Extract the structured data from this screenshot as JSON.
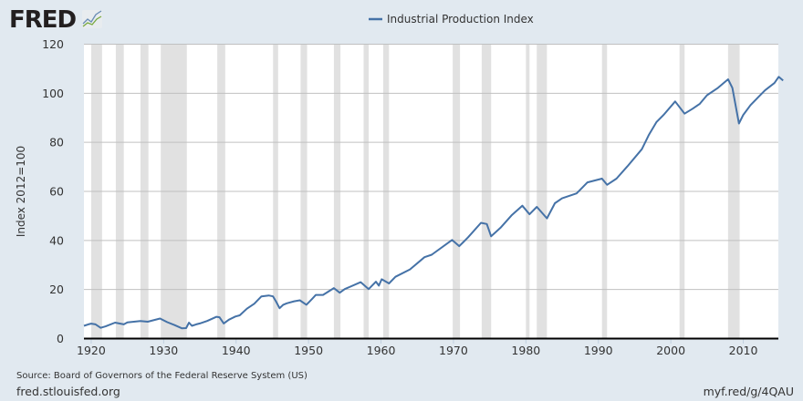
{
  "logo": {
    "text": "FRED"
  },
  "footer": {
    "source": "Source: Board of Governors of the Federal Reserve System (US)",
    "site": "fred.stlouisfed.org",
    "short_url": "myf.red/g/4QAU"
  },
  "colors": {
    "background": "#e1e9f0",
    "series": "#4572a7",
    "recession": "#e1e1e1",
    "grid": "#c0c0c0"
  },
  "chart_data": {
    "type": "line",
    "title": "",
    "xlabel": "",
    "ylabel": "Index 2012=100",
    "xlim": [
      1919.0,
      2015.6
    ],
    "ylim": [
      0,
      120
    ],
    "grid": true,
    "legend_placement": "top-center",
    "x_ticks": [
      "1920",
      "1930",
      "1940",
      "1950",
      "1960",
      "1970",
      "1980",
      "1990",
      "2000",
      "2010"
    ],
    "y_ticks": [
      "0",
      "20",
      "40",
      "60",
      "80",
      "100",
      "120"
    ],
    "recessions": [
      [
        1920.0,
        1921.5
      ],
      [
        1923.4,
        1924.5
      ],
      [
        1926.8,
        1927.9
      ],
      [
        1929.6,
        1933.2
      ],
      [
        1937.4,
        1938.5
      ],
      [
        1945.1,
        1945.8
      ],
      [
        1948.9,
        1949.8
      ],
      [
        1953.5,
        1954.4
      ],
      [
        1957.6,
        1958.3
      ],
      [
        1960.3,
        1961.1
      ],
      [
        1969.9,
        1970.9
      ],
      [
        1973.9,
        1975.2
      ],
      [
        1980.0,
        1980.5
      ],
      [
        1981.5,
        1982.9
      ],
      [
        1990.5,
        1991.2
      ],
      [
        2001.2,
        2001.9
      ],
      [
        2007.9,
        2009.5
      ]
    ],
    "series": [
      {
        "name": "Industrial Production Index",
        "points": [
          [
            1919.0,
            5.0
          ],
          [
            1919.6,
            5.6
          ],
          [
            1920.0,
            5.9
          ],
          [
            1920.6,
            5.6
          ],
          [
            1921.3,
            4.2
          ],
          [
            1922.0,
            4.8
          ],
          [
            1923.3,
            6.3
          ],
          [
            1924.5,
            5.6
          ],
          [
            1925.0,
            6.4
          ],
          [
            1926.8,
            7.0
          ],
          [
            1927.8,
            6.7
          ],
          [
            1929.5,
            8.0
          ],
          [
            1930.5,
            6.5
          ],
          [
            1931.5,
            5.3
          ],
          [
            1932.5,
            4.0
          ],
          [
            1933.1,
            4.1
          ],
          [
            1933.5,
            6.3
          ],
          [
            1933.9,
            5.0
          ],
          [
            1934.5,
            5.6
          ],
          [
            1935.0,
            6.0
          ],
          [
            1936.0,
            7.0
          ],
          [
            1937.3,
            8.7
          ],
          [
            1937.7,
            8.5
          ],
          [
            1938.3,
            6.0
          ],
          [
            1939.0,
            7.5
          ],
          [
            1939.9,
            8.8
          ],
          [
            1940.5,
            9.3
          ],
          [
            1941.5,
            12.0
          ],
          [
            1942.5,
            14.0
          ],
          [
            1943.5,
            17.0
          ],
          [
            1944.5,
            17.4
          ],
          [
            1945.1,
            17.0
          ],
          [
            1945.5,
            15.0
          ],
          [
            1946.0,
            12.2
          ],
          [
            1946.5,
            13.6
          ],
          [
            1947.0,
            14.2
          ],
          [
            1948.0,
            15.0
          ],
          [
            1948.8,
            15.4
          ],
          [
            1949.7,
            13.6
          ],
          [
            1950.5,
            16.0
          ],
          [
            1951.0,
            17.6
          ],
          [
            1952.0,
            17.6
          ],
          [
            1953.5,
            20.4
          ],
          [
            1954.3,
            18.5
          ],
          [
            1955.0,
            20.0
          ],
          [
            1957.2,
            22.8
          ],
          [
            1958.3,
            20.0
          ],
          [
            1959.3,
            23.0
          ],
          [
            1959.7,
            21.4
          ],
          [
            1960.1,
            24.0
          ],
          [
            1961.1,
            22.3
          ],
          [
            1962.0,
            25.0
          ],
          [
            1964.0,
            28.0
          ],
          [
            1966.0,
            33.0
          ],
          [
            1967.0,
            34.0
          ],
          [
            1969.8,
            40.0
          ],
          [
            1970.8,
            37.5
          ],
          [
            1972.0,
            41.0
          ],
          [
            1973.8,
            47.0
          ],
          [
            1974.6,
            46.5
          ],
          [
            1975.2,
            41.5
          ],
          [
            1976.5,
            45.0
          ],
          [
            1978.0,
            50.0
          ],
          [
            1979.5,
            54.0
          ],
          [
            1980.5,
            50.5
          ],
          [
            1981.5,
            53.5
          ],
          [
            1982.9,
            48.8
          ],
          [
            1984.0,
            55.0
          ],
          [
            1985.0,
            57.0
          ],
          [
            1987.0,
            59.0
          ],
          [
            1988.5,
            63.5
          ],
          [
            1990.5,
            65.0
          ],
          [
            1991.2,
            62.5
          ],
          [
            1992.5,
            65.0
          ],
          [
            1994.0,
            70.0
          ],
          [
            1996.0,
            77.0
          ],
          [
            1997.0,
            83.0
          ],
          [
            1998.0,
            88.0
          ],
          [
            1999.0,
            91.0
          ],
          [
            2000.6,
            96.5
          ],
          [
            2001.9,
            91.5
          ],
          [
            2003.0,
            93.5
          ],
          [
            2004.0,
            95.5
          ],
          [
            2005.0,
            99.0
          ],
          [
            2006.5,
            102.0
          ],
          [
            2007.9,
            105.5
          ],
          [
            2008.5,
            102.0
          ],
          [
            2009.4,
            87.5
          ],
          [
            2010.0,
            91.0
          ],
          [
            2011.0,
            95.0
          ],
          [
            2012.0,
            98.0
          ],
          [
            2013.0,
            101.0
          ],
          [
            2014.3,
            104.0
          ],
          [
            2014.9,
            106.5
          ],
          [
            2015.5,
            105.0
          ]
        ]
      }
    ]
  }
}
